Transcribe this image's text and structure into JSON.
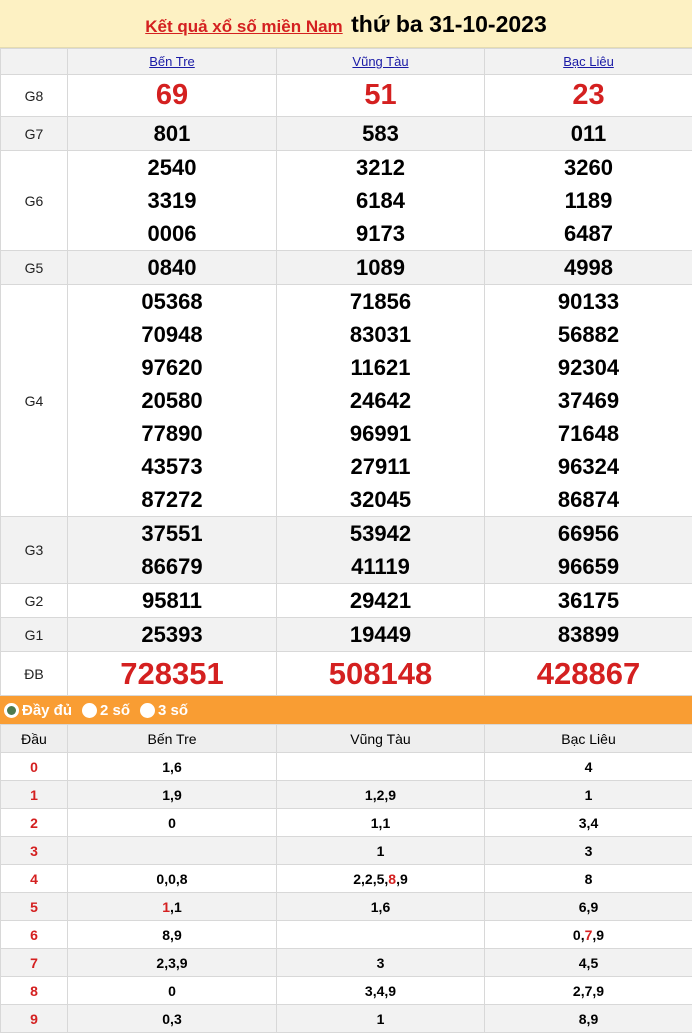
{
  "header": {
    "link": "Kết quả xổ số miền Nam",
    "date": "thứ ba 31-10-2023"
  },
  "provinces": [
    "Bến Tre",
    "Vũng Tàu",
    "Bạc Liêu"
  ],
  "prizes": [
    {
      "label": "G8",
      "nums": [
        [
          "69"
        ],
        [
          "51"
        ],
        [
          "23"
        ]
      ]
    },
    {
      "label": "G7",
      "nums": [
        [
          "801"
        ],
        [
          "583"
        ],
        [
          "011"
        ]
      ]
    },
    {
      "label": "G6",
      "nums": [
        [
          "2540",
          "3319",
          "0006"
        ],
        [
          "3212",
          "6184",
          "9173"
        ],
        [
          "3260",
          "1189",
          "6487"
        ]
      ]
    },
    {
      "label": "G5",
      "nums": [
        [
          "0840"
        ],
        [
          "1089"
        ],
        [
          "4998"
        ]
      ]
    },
    {
      "label": "G4",
      "nums": [
        [
          "05368",
          "70948",
          "97620",
          "20580",
          "77890",
          "43573",
          "87272"
        ],
        [
          "71856",
          "83031",
          "11621",
          "24642",
          "96991",
          "27911",
          "32045"
        ],
        [
          "90133",
          "56882",
          "92304",
          "37469",
          "71648",
          "96324",
          "86874"
        ]
      ]
    },
    {
      "label": "G3",
      "nums": [
        [
          "37551",
          "86679"
        ],
        [
          "53942",
          "41119"
        ],
        [
          "66956",
          "96659"
        ]
      ]
    },
    {
      "label": "G2",
      "nums": [
        [
          "95811"
        ],
        [
          "29421"
        ],
        [
          "36175"
        ]
      ]
    },
    {
      "label": "G1",
      "nums": [
        [
          "25393"
        ],
        [
          "19449"
        ],
        [
          "83899"
        ]
      ]
    },
    {
      "label": "ĐB",
      "nums": [
        [
          "728351"
        ],
        [
          "508148"
        ],
        [
          "428867"
        ]
      ]
    }
  ],
  "options": [
    {
      "label": "Đầy đủ",
      "selected": true
    },
    {
      "label": "2 số",
      "selected": false
    },
    {
      "label": "3 số",
      "selected": false
    }
  ],
  "loto": {
    "head_label": "Đầu",
    "rows": [
      {
        "d": "0",
        "cells": [
          [
            {
              "v": "1"
            },
            {
              "v": "6"
            }
          ],
          [],
          [
            {
              "v": "4"
            }
          ]
        ]
      },
      {
        "d": "1",
        "cells": [
          [
            {
              "v": "1"
            },
            {
              "v": "9"
            }
          ],
          [
            {
              "v": "1"
            },
            {
              "v": "2"
            },
            {
              "v": "9"
            }
          ],
          [
            {
              "v": "1"
            }
          ]
        ]
      },
      {
        "d": "2",
        "cells": [
          [
            {
              "v": "0"
            }
          ],
          [
            {
              "v": "1"
            },
            {
              "v": "1"
            }
          ],
          [
            {
              "v": "3"
            },
            {
              "v": "4"
            }
          ]
        ]
      },
      {
        "d": "3",
        "cells": [
          [],
          [
            {
              "v": "1"
            }
          ],
          [
            {
              "v": "3"
            }
          ]
        ]
      },
      {
        "d": "4",
        "cells": [
          [
            {
              "v": "0"
            },
            {
              "v": "0"
            },
            {
              "v": "8"
            }
          ],
          [
            {
              "v": "2"
            },
            {
              "v": "2"
            },
            {
              "v": "5"
            },
            {
              "v": "8",
              "hl": true
            },
            {
              "v": "9"
            }
          ],
          [
            {
              "v": "8"
            }
          ]
        ]
      },
      {
        "d": "5",
        "cells": [
          [
            {
              "v": "1",
              "hl": true
            },
            {
              "v": "1"
            }
          ],
          [
            {
              "v": "1"
            },
            {
              "v": "6"
            }
          ],
          [
            {
              "v": "6"
            },
            {
              "v": "9"
            }
          ]
        ]
      },
      {
        "d": "6",
        "cells": [
          [
            {
              "v": "8"
            },
            {
              "v": "9"
            }
          ],
          [],
          [
            {
              "v": "0"
            },
            {
              "v": "7",
              "hl": true
            },
            {
              "v": "9"
            }
          ]
        ]
      },
      {
        "d": "7",
        "cells": [
          [
            {
              "v": "2"
            },
            {
              "v": "3"
            },
            {
              "v": "9"
            }
          ],
          [
            {
              "v": "3"
            }
          ],
          [
            {
              "v": "4"
            },
            {
              "v": "5"
            }
          ]
        ]
      },
      {
        "d": "8",
        "cells": [
          [
            {
              "v": "0"
            }
          ],
          [
            {
              "v": "3"
            },
            {
              "v": "4"
            },
            {
              "v": "9"
            }
          ],
          [
            {
              "v": "2"
            },
            {
              "v": "7"
            },
            {
              "v": "9"
            }
          ]
        ]
      },
      {
        "d": "9",
        "cells": [
          [
            {
              "v": "0"
            },
            {
              "v": "3"
            }
          ],
          [
            {
              "v": "1"
            }
          ],
          [
            {
              "v": "8"
            },
            {
              "v": "9"
            }
          ]
        ]
      }
    ]
  },
  "colors": {
    "accent_red": "#d42020",
    "orange_bar": "#f99d33",
    "header_bg": "#fdf1c3"
  }
}
